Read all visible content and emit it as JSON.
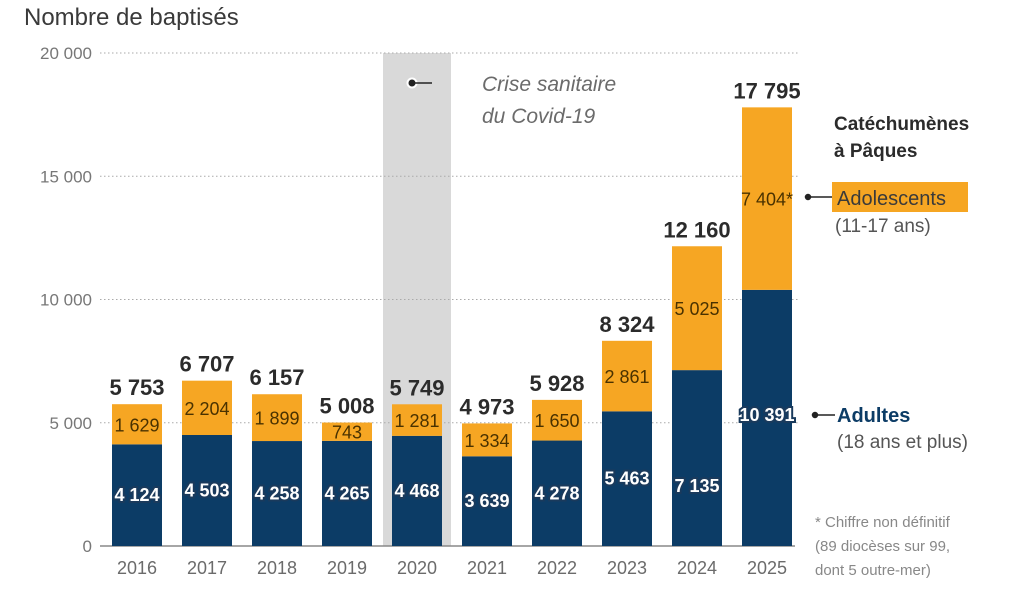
{
  "chart_data": {
    "type": "bar",
    "stacked": true,
    "title": "",
    "ylabel": "Nombre de baptisés",
    "xlabel": "",
    "ylim": [
      0,
      20000
    ],
    "yticks": [
      0,
      5000,
      10000,
      15000,
      20000
    ],
    "ytick_labels": [
      "0",
      "5 000",
      "10 000",
      "15 000",
      "20 000"
    ],
    "grid": "dotted-horizontal",
    "categories": [
      "2016",
      "2017",
      "2018",
      "2019",
      "2020",
      "2021",
      "2022",
      "2023",
      "2024",
      "2025"
    ],
    "series": [
      {
        "name": "Adultes",
        "sub": "(18 ans et plus)",
        "color": "#0c3c66",
        "values": [
          4124,
          4503,
          4258,
          4265,
          4468,
          3639,
          4278,
          5463,
          7135,
          10391
        ],
        "labels": [
          "4 124",
          "4 503",
          "4 258",
          "4 265",
          "4 468",
          "3 639",
          "4 278",
          "5 463",
          "7 135",
          "10 391"
        ]
      },
      {
        "name": "Adolescents",
        "sub": "(11-17 ans)",
        "color": "#f6a623",
        "values": [
          1629,
          2204,
          1899,
          743,
          1281,
          1334,
          1650,
          2861,
          5025,
          7404
        ],
        "labels": [
          "1 629",
          "2 204",
          "1 899",
          "743",
          "1 281",
          "1 334",
          "1 650",
          "2 861",
          "5 025",
          "7 404*"
        ]
      }
    ],
    "totals": [
      5753,
      6707,
      6157,
      5008,
      5749,
      4973,
      5928,
      8324,
      12160,
      17795
    ],
    "total_labels": [
      "5 753",
      "6 707",
      "6 157",
      "5 008",
      "5 749",
      "4 973",
      "5 928",
      "8 324",
      "12 160",
      "17 795"
    ],
    "annotations": {
      "covid": {
        "category": "2020",
        "line1": "Crise sanitaire",
        "line2": "du Covid-19",
        "band_color": "#d9d9d9"
      },
      "legend_title_line1": "Catéchumènes",
      "legend_title_line2": "à Pâques",
      "note_line1": "* Chiffre non définitif",
      "note_line2": "(89 diocèses sur 99,",
      "note_line3": "dont 5 outre-mer)"
    },
    "legend": "right"
  }
}
